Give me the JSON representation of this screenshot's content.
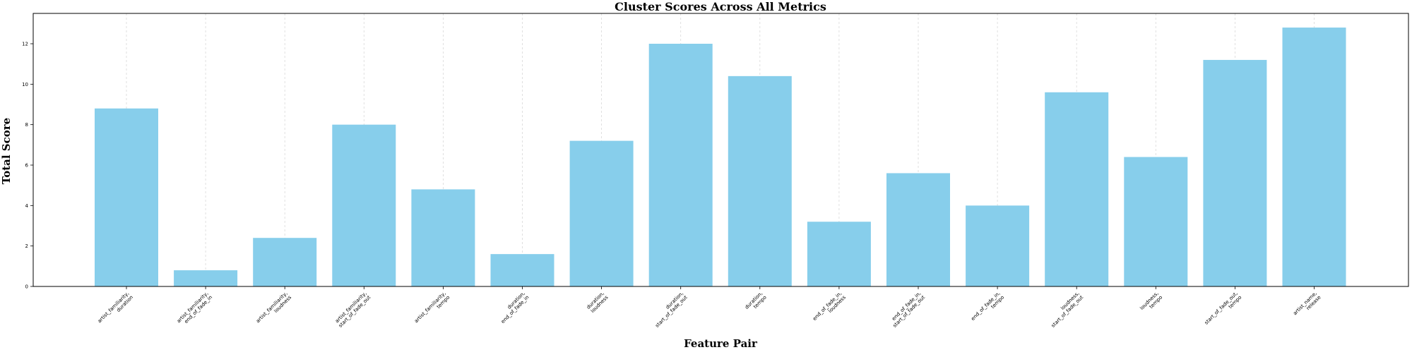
{
  "chart_data": {
    "type": "bar",
    "title": "Cluster Scores Across All Metrics",
    "xlabel": "Feature Pair",
    "ylabel": "Total Score",
    "ylim": [
      0,
      13.5
    ],
    "yticks": [
      0,
      2,
      4,
      6,
      8,
      10,
      12
    ],
    "grid": "x-only dashed",
    "bar_color": "#87CEEB",
    "categories": [
      [
        "artist_familiarity,",
        "duration"
      ],
      [
        "artist_familiarity,",
        "end_of_fade_in"
      ],
      [
        "artist_familiarity,",
        "loudness"
      ],
      [
        "artist_familiarity,",
        "start_of_fade_out"
      ],
      [
        "artist_familiarity,",
        "tempo"
      ],
      [
        "duration,",
        "end_of_fade_in"
      ],
      [
        "duration,",
        "loudness"
      ],
      [
        "duration,",
        "start_of_fade_out"
      ],
      [
        "duration,",
        "tempo"
      ],
      [
        "end_of_fade_in,",
        "loudness"
      ],
      [
        "end_of_fade_in,",
        "start_of_fade_out"
      ],
      [
        "end_of_fade_in,",
        "tempo"
      ],
      [
        "loudness,",
        "start_of_fade_out"
      ],
      [
        "loudness,",
        "tempo"
      ],
      [
        "start_of_fade_out,",
        "tempo"
      ],
      [
        "artist_name,",
        "release"
      ]
    ],
    "values": [
      8.8,
      0.8,
      2.4,
      8.0,
      4.8,
      1.6,
      7.2,
      12.0,
      10.4,
      3.2,
      5.6,
      4.0,
      9.6,
      6.4,
      11.2,
      12.8
    ]
  }
}
